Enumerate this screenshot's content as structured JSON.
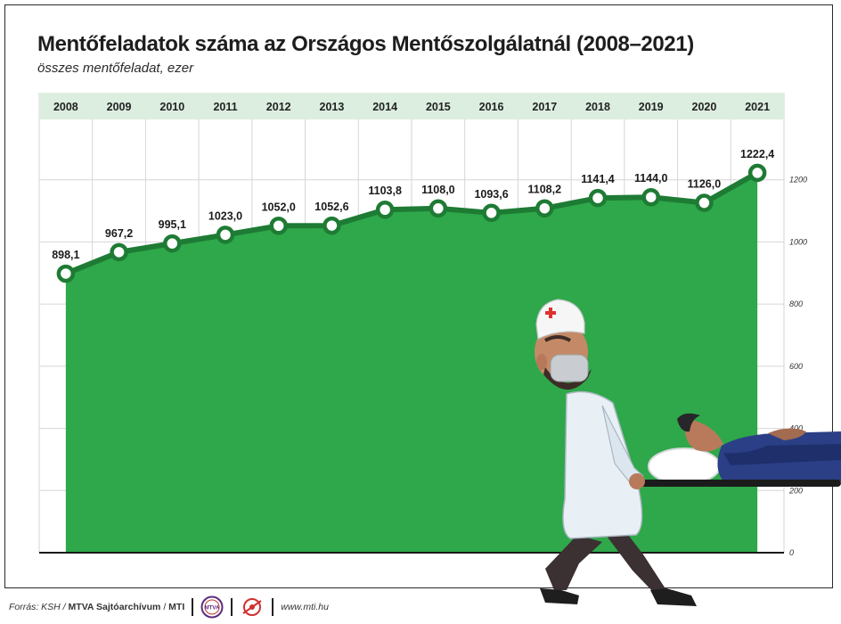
{
  "title": "Mentőfeladatok száma az Országos Mentőszolgálatnál (2008–2021)",
  "subtitle": "összes mentőfeladat, ezer",
  "footer": {
    "source_label": "Forrás: KSH /",
    "archive": "MTVA Sajtóarchívum",
    "slash": "/",
    "agency": "MTI",
    "logo1_text": "MTVA",
    "website": "www.mti.hu"
  },
  "colors": {
    "area_fill": "#2ea84a",
    "line": "#1e7b34",
    "header_band": "#dceee0",
    "grid": "#d6d6d6"
  },
  "icons": [
    "mtva-logo-icon",
    "mti-logo-icon",
    "paramedic-illustration",
    "stretcher-patient-illustration"
  ],
  "chart_data": {
    "type": "area",
    "title": "Mentőfeladatok száma az Országos Mentőszolgálatnál (2008–2021)",
    "subtitle": "összes mentőfeladat, ezer",
    "categories": [
      "2008",
      "2009",
      "2010",
      "2011",
      "2012",
      "2013",
      "2014",
      "2015",
      "2016",
      "2017",
      "2018",
      "2019",
      "2020",
      "2021"
    ],
    "values": [
      898.1,
      967.2,
      995.1,
      1023.0,
      1052.0,
      1052.6,
      1103.8,
      1108.0,
      1093.6,
      1108.2,
      1141.4,
      1144.0,
      1126.0,
      1222.4
    ],
    "value_labels": [
      "898,1",
      "967,2",
      "995,1",
      "1023,0",
      "1052,0",
      "1052,6",
      "1103,8",
      "1108,0",
      "1093,6",
      "1108,2",
      "1141,4",
      "1144,0",
      "1126,0",
      "1222,4"
    ],
    "y_ticks": [
      0,
      200,
      400,
      600,
      800,
      1000,
      1200
    ],
    "ylim": [
      0,
      1400
    ],
    "grid": true,
    "axis_position": "right"
  }
}
